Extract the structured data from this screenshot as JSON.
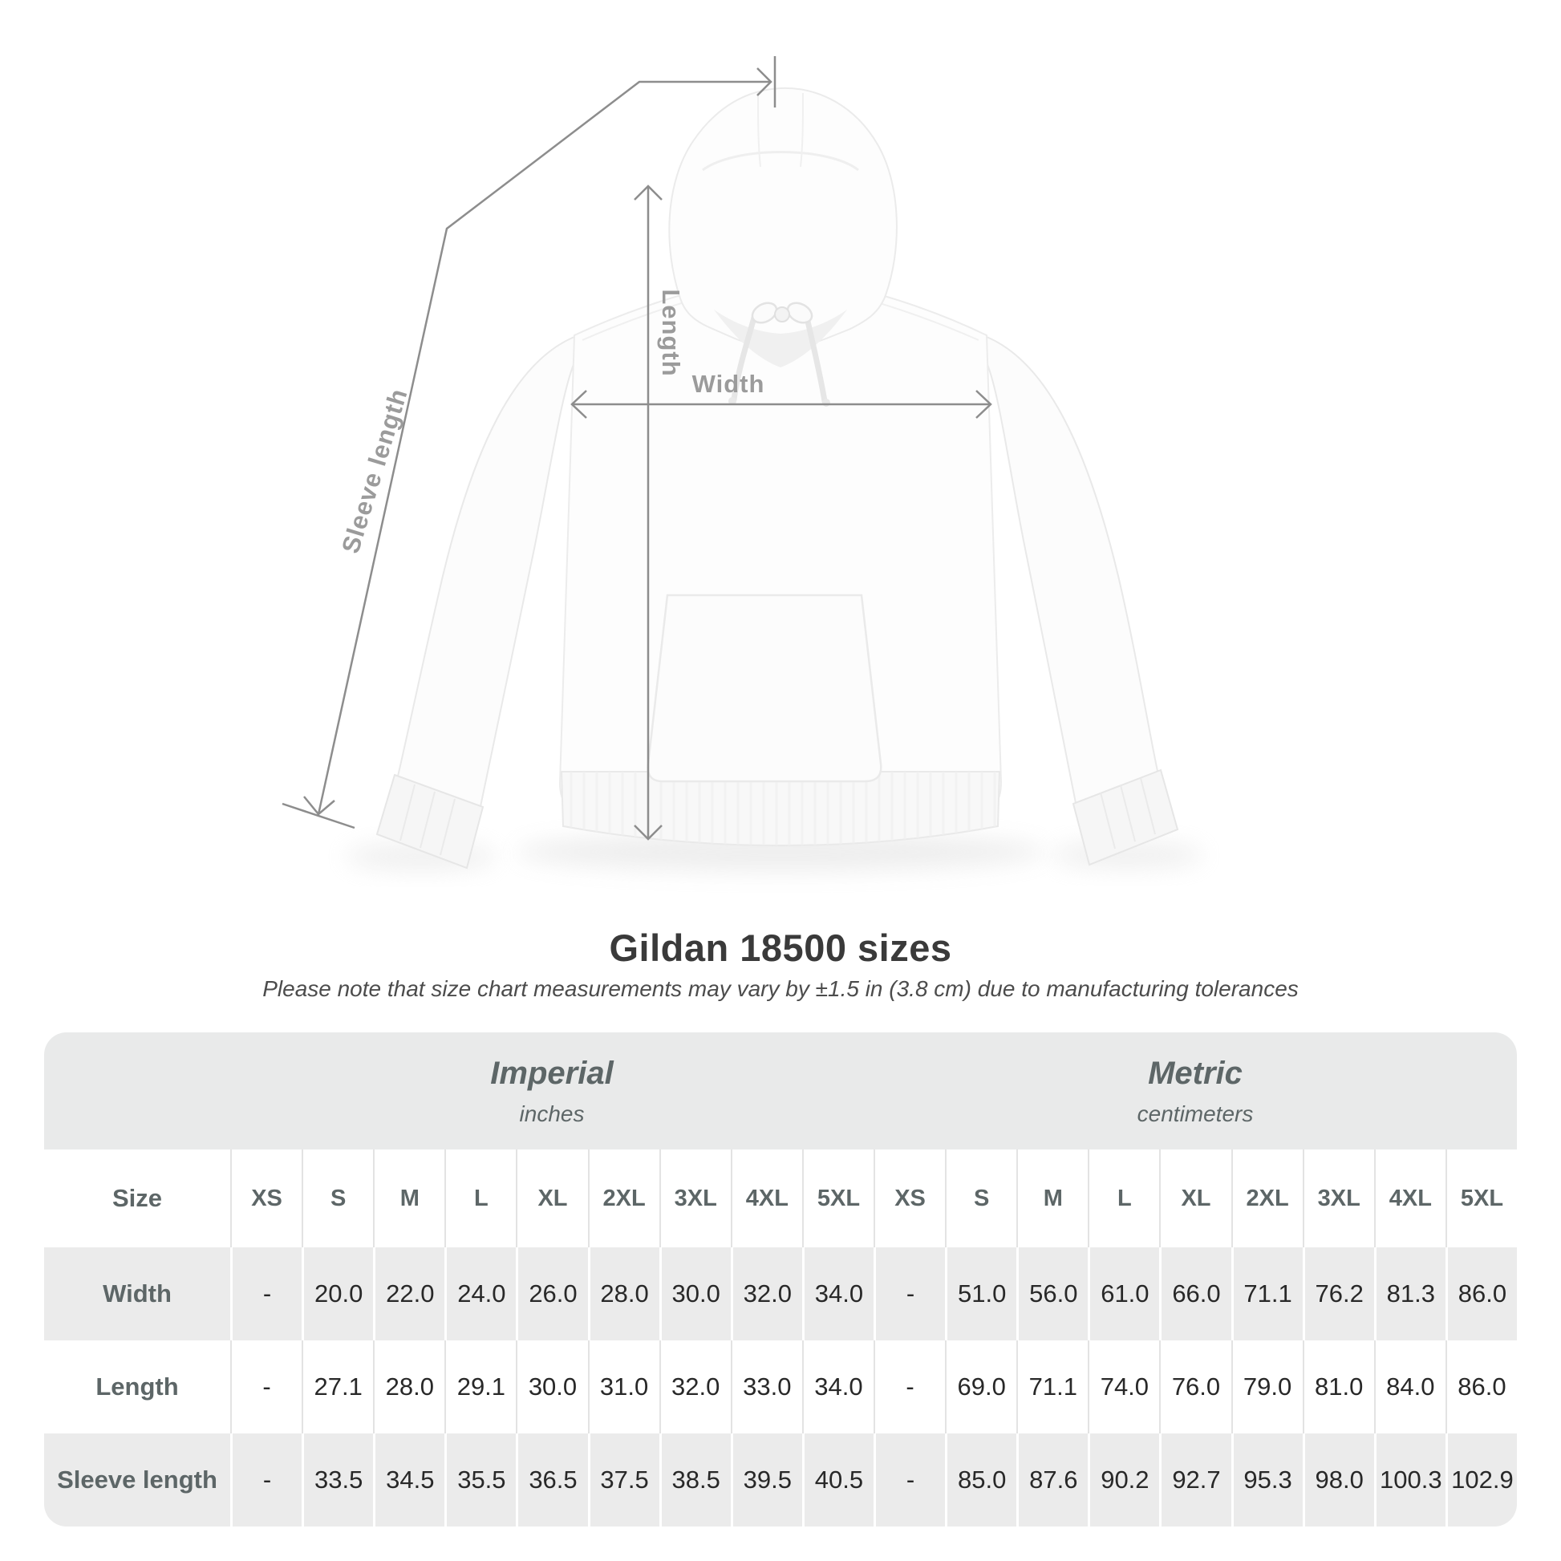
{
  "diagram": {
    "labels": {
      "length": "Length",
      "width": "Width",
      "sleeve": "Sleeve length"
    }
  },
  "chart_data": {
    "type": "table",
    "title": "Gildan 18500 sizes",
    "note": "Please note that size chart measurements may vary by ±1.5 in (3.8 cm) due to manufacturing tolerances",
    "corner_label": "Size",
    "groups": [
      {
        "label": "Imperial",
        "unit": "inches"
      },
      {
        "label": "Metric",
        "unit": "centimeters"
      }
    ],
    "sizes": [
      "XS",
      "S",
      "M",
      "L",
      "XL",
      "2XL",
      "3XL",
      "4XL",
      "5XL"
    ],
    "rows": [
      {
        "label": "Width",
        "imperial": [
          "-",
          "20.0",
          "22.0",
          "24.0",
          "26.0",
          "28.0",
          "30.0",
          "32.0",
          "34.0"
        ],
        "metric": [
          "-",
          "51.0",
          "56.0",
          "61.0",
          "66.0",
          "71.1",
          "76.2",
          "81.3",
          "86.0"
        ]
      },
      {
        "label": "Length",
        "imperial": [
          "-",
          "27.1",
          "28.0",
          "29.1",
          "30.0",
          "31.0",
          "32.0",
          "33.0",
          "34.0"
        ],
        "metric": [
          "-",
          "69.0",
          "71.1",
          "74.0",
          "76.0",
          "79.0",
          "81.0",
          "84.0",
          "86.0"
        ]
      },
      {
        "label": "Sleeve length",
        "imperial": [
          "-",
          "33.5",
          "34.5",
          "35.5",
          "36.5",
          "37.5",
          "38.5",
          "39.5",
          "40.5"
        ],
        "metric": [
          "-",
          "85.0",
          "87.6",
          "90.2",
          "92.7",
          "95.3",
          "98.0",
          "100.3",
          "102.9"
        ]
      }
    ]
  },
  "colors": {
    "title_text": "#3a3a3a",
    "note_text": "#4c4c4c",
    "dim_line": "#8d8d8d",
    "dim_label": "#9b9b9b",
    "band_bg": "#e9eaea",
    "row_alt_bg": "#ebebeb",
    "head_text": "#5d6667",
    "value_text": "#282828",
    "sep_on_white": "#e3e3e3",
    "sep_on_gray": "#ffffff"
  }
}
